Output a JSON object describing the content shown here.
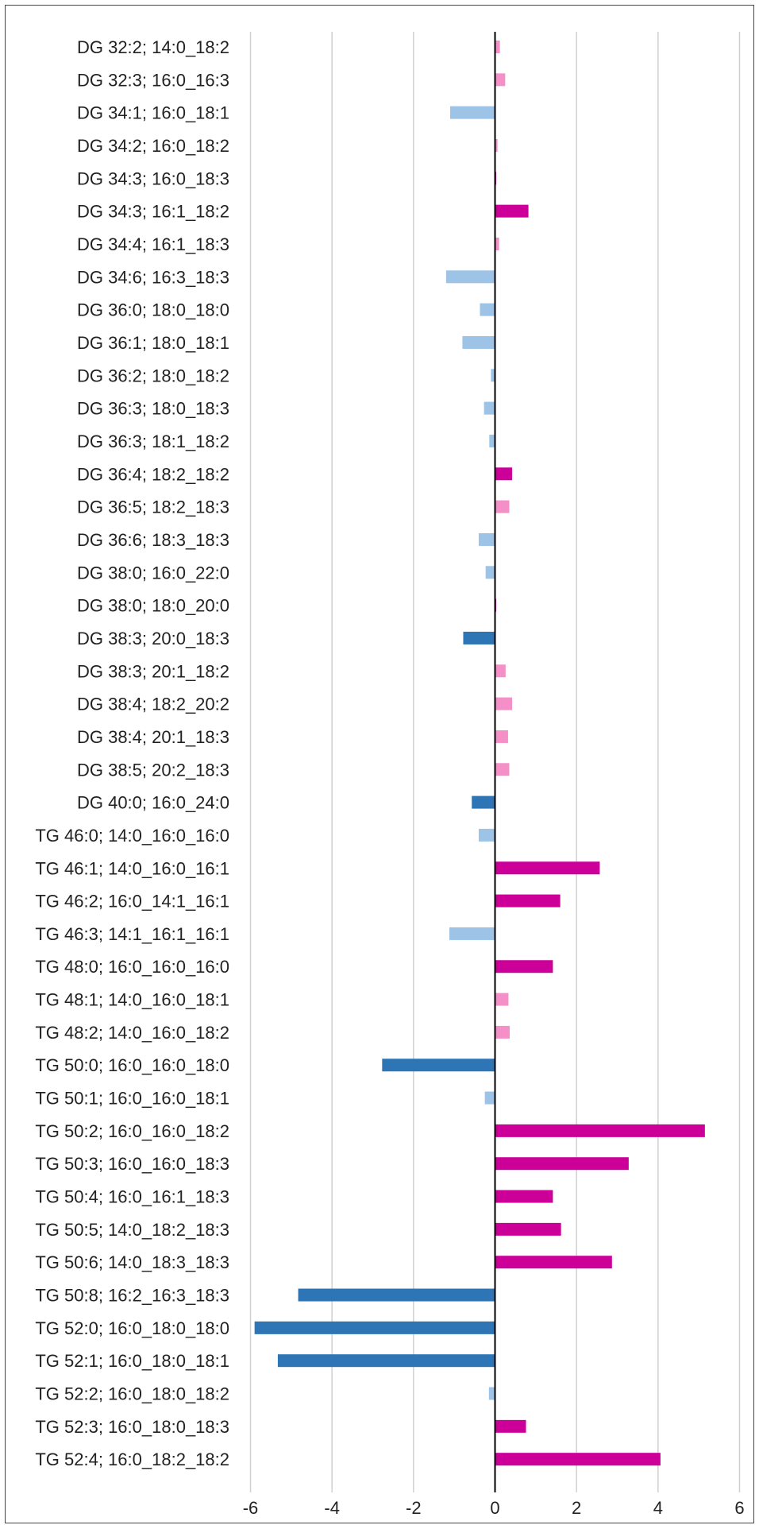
{
  "chart_data": {
    "type": "bar",
    "orientation": "horizontal",
    "title": "",
    "xlabel": "",
    "ylabel": "",
    "xlim": [
      -6,
      6
    ],
    "xticks": [
      -6,
      -4,
      -2,
      0,
      2,
      4,
      6
    ],
    "grid": "vertical",
    "legend": "none",
    "colors": {
      "strong_negative": "#2E75B6",
      "weak_negative": "#9DC3E6",
      "strong_positive": "#CC0099",
      "weak_positive": "#F48FC8"
    },
    "categories": [
      "DG 32:2; 14:0_18:2",
      "DG 32:3; 16:0_16:3",
      "DG 34:1; 16:0_18:1",
      "DG 34:2; 16:0_18:2",
      "DG 34:3; 16:0_18:3",
      "DG 34:3; 16:1_18:2",
      "DG 34:4; 16:1_18:3",
      "DG 34:6; 16:3_18:3",
      "DG 36:0; 18:0_18:0",
      "DG 36:1; 18:0_18:1",
      "DG 36:2; 18:0_18:2",
      "DG 36:3; 18:0_18:3",
      "DG 36:3; 18:1_18:2",
      "DG 36:4; 18:2_18:2",
      "DG 36:5; 18:2_18:3",
      "DG 36:6; 18:3_18:3",
      "DG 38:0; 16:0_22:0",
      "DG 38:0; 18:0_20:0",
      "DG 38:3; 20:0_18:3",
      "DG 38:3; 20:1_18:2",
      "DG 38:4; 18:2_20:2",
      "DG 38:4; 20:1_18:3",
      "DG 38:5; 20:2_18:3",
      "DG 40:0; 16:0_24:0",
      "TG 46:0; 14:0_16:0_16:0",
      "TG 46:1; 14:0_16:0_16:1",
      "TG 46:2; 16:0_14:1_16:1",
      "TG 46:3; 14:1_16:1_16:1",
      "TG 48:0; 16:0_16:0_16:0",
      "TG 48:1; 14:0_16:0_18:1",
      "TG 48:2; 14:0_16:0_18:2",
      "TG 50:0; 16:0_16:0_18:0",
      "TG 50:1; 16:0_16:0_18:1",
      "TG 50:2; 16:0_16:0_18:2",
      "TG 50:3; 16:0_16:0_18:3",
      "TG 50:4; 16:0_16:1_18:3",
      "TG 50:5; 14:0_18:2_18:3",
      "TG 50:6; 14:0_18:3_18:3",
      "TG 50:8; 16:2_16:3_18:3",
      "TG 52:0; 16:0_18:0_18:0",
      "TG 52:1; 16:0_18:0_18:1",
      "TG 52:2; 16:0_18:0_18:2",
      "TG 52:3; 16:0_18:0_18:3",
      "TG 52:4; 16:0_18:2_18:2"
    ],
    "values": [
      0.12,
      0.25,
      -1.1,
      0.06,
      0.03,
      0.82,
      0.1,
      -1.2,
      -0.37,
      -0.8,
      -0.1,
      -0.27,
      -0.14,
      0.42,
      0.35,
      -0.4,
      -0.23,
      0.03,
      -0.78,
      0.26,
      0.42,
      0.32,
      0.35,
      -0.57,
      -0.4,
      2.57,
      1.6,
      -1.12,
      1.42,
      0.33,
      0.36,
      -2.77,
      -0.25,
      5.15,
      3.28,
      1.42,
      1.62,
      2.87,
      -4.83,
      -5.9,
      -5.33,
      -0.15,
      0.76,
      4.06
    ],
    "bar_color_keys": [
      "weak_positive",
      "weak_positive",
      "weak_negative",
      "weak_positive",
      "strong_positive",
      "strong_positive",
      "weak_positive",
      "weak_negative",
      "weak_negative",
      "weak_negative",
      "weak_negative",
      "weak_negative",
      "weak_negative",
      "strong_positive",
      "weak_positive",
      "weak_negative",
      "weak_negative",
      "strong_positive",
      "strong_negative",
      "weak_positive",
      "weak_positive",
      "weak_positive",
      "weak_positive",
      "strong_negative",
      "weak_negative",
      "strong_positive",
      "strong_positive",
      "weak_negative",
      "strong_positive",
      "weak_positive",
      "weak_positive",
      "strong_negative",
      "weak_negative",
      "strong_positive",
      "strong_positive",
      "strong_positive",
      "strong_positive",
      "strong_positive",
      "strong_negative",
      "strong_negative",
      "strong_negative",
      "weak_negative",
      "strong_positive",
      "strong_positive"
    ]
  }
}
